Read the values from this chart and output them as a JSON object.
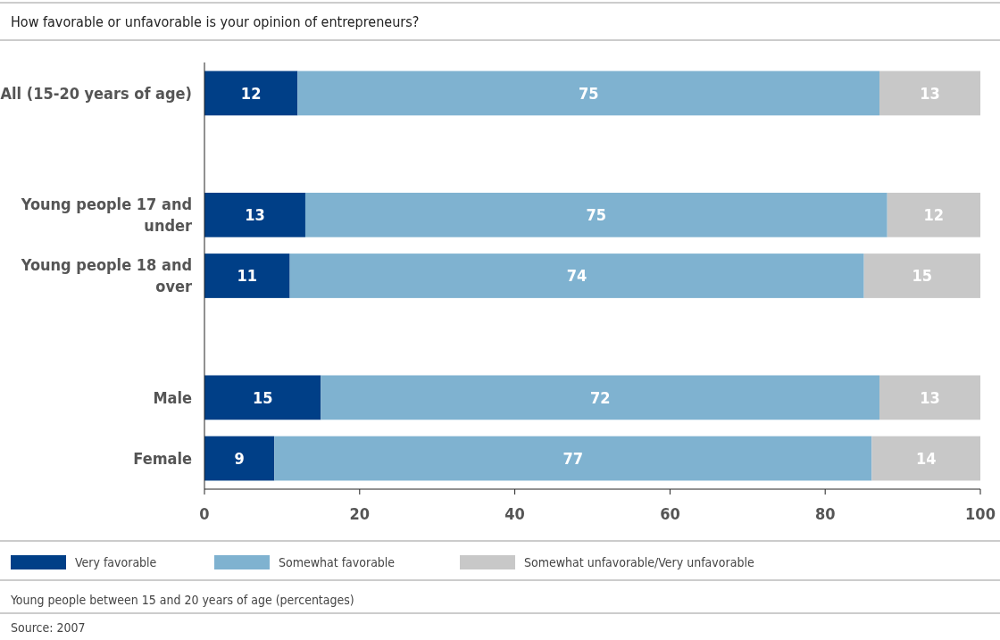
{
  "chart_data": {
    "type": "bar",
    "orientation": "horizontal",
    "stacked": true,
    "title": "How favorable or unfavorable is your opinion of entrepreneurs?",
    "categories": [
      "All (15-20 years of age)",
      null,
      "Young people 17 and under",
      "Young people 18 and over",
      null,
      "Male",
      "Female"
    ],
    "series": [
      {
        "name": "Very favorable",
        "color": "#003f87",
        "values": [
          12,
          null,
          13,
          11,
          null,
          15,
          9
        ]
      },
      {
        "name": "Somewhat favorable",
        "color": "#7fb2d0",
        "values": [
          75,
          null,
          75,
          74,
          null,
          72,
          77
        ]
      },
      {
        "name": "Somewhat unfavorable/Very unfavorable",
        "color": "#c8c8c8",
        "values": [
          13,
          null,
          12,
          15,
          null,
          13,
          14
        ]
      }
    ],
    "xlim": [
      0,
      100
    ],
    "xticks": [
      0,
      20,
      40,
      60,
      80,
      100
    ],
    "data_labels": true,
    "legend": "bottom",
    "grid": false,
    "annotations": [
      "Young people between 15 and 20 years of age (percentages)",
      "Source: 2007"
    ]
  }
}
